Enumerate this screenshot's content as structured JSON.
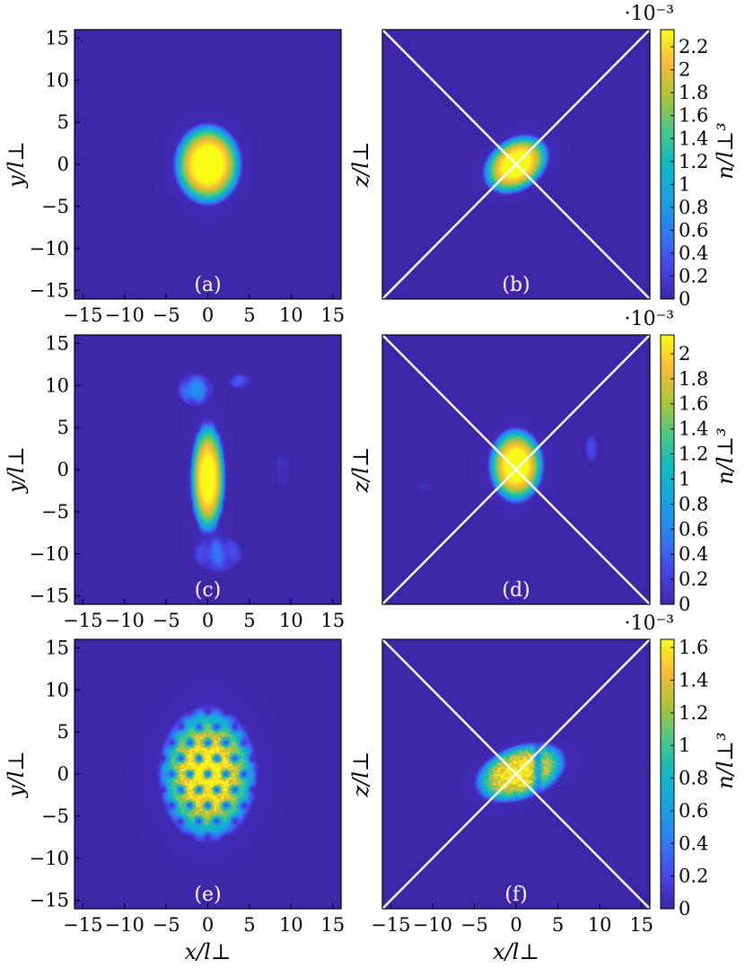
{
  "figure": {
    "xlabel": "x/l⊥",
    "ylabel_left": "y/l⊥",
    "ylabel_right": "z/l⊥",
    "colorbar_label": "n/l⊥³",
    "colorbar_exponent": "·10⁻³"
  },
  "chart_data": [
    {
      "type": "heatmap",
      "panel": "(a)",
      "plane": "x-y",
      "xlim": [
        -16,
        16
      ],
      "ylim": [
        -16,
        16
      ],
      "x_ticks": [
        -15,
        -10,
        -5,
        0,
        5,
        10,
        15
      ],
      "y_ticks": [
        -15,
        -10,
        -5,
        0,
        5,
        10,
        15
      ],
      "show_diagonals": false,
      "peak_density": 2.3,
      "blobs": [
        {
          "cx": 0,
          "cy": 0,
          "sx": 4.2,
          "sy": 5.0,
          "rot": 0,
          "amp": 2.3
        }
      ],
      "texture": "none"
    },
    {
      "type": "heatmap",
      "panel": "(b)",
      "plane": "x-z",
      "xlim": [
        -16,
        16
      ],
      "ylim": [
        -16,
        16
      ],
      "show_diagonals": true,
      "peak_density": 2.3,
      "blobs": [
        {
          "cx": 0,
          "cy": 0,
          "sx": 4.4,
          "sy": 3.2,
          "rot": 35,
          "amp": 2.3
        }
      ],
      "texture": "none",
      "colorbar": {
        "min": 0,
        "max": 2.35,
        "ticks": [
          0,
          0.2,
          0.4,
          0.6,
          0.8,
          1,
          1.2,
          1.4,
          1.6,
          1.8,
          2,
          2.2
        ],
        "exponent": "·10⁻³"
      }
    },
    {
      "type": "heatmap",
      "panel": "(c)",
      "plane": "x-y",
      "xlim": [
        -16,
        16
      ],
      "ylim": [
        -16,
        16
      ],
      "x_ticks": [
        -15,
        -10,
        -5,
        0,
        5,
        10,
        15
      ],
      "y_ticks": [
        -15,
        -10,
        -5,
        0,
        5,
        10,
        15
      ],
      "show_diagonals": false,
      "peak_density": 2.1,
      "blobs": [
        {
          "cx": 0,
          "cy": -1,
          "sx": 2.2,
          "sy": 7.0,
          "rot": 0,
          "amp": 2.0
        },
        {
          "cx": -1.5,
          "cy": 9.5,
          "sx": 2.2,
          "sy": 2.0,
          "rot": 0,
          "amp": 0.6
        },
        {
          "cx": 3.8,
          "cy": 10.5,
          "sx": 1.4,
          "sy": 0.9,
          "rot": 0,
          "amp": 0.35
        },
        {
          "cx": 1.2,
          "cy": -10,
          "sx": 3.0,
          "sy": 2.2,
          "rot": 0,
          "amp": 0.45
        },
        {
          "cx": 9,
          "cy": 0,
          "sx": 0.9,
          "sy": 2.5,
          "rot": 0,
          "amp": 0.08
        }
      ],
      "texture": "edge-vortices"
    },
    {
      "type": "heatmap",
      "panel": "(d)",
      "plane": "x-z",
      "xlim": [
        -16,
        16
      ],
      "ylim": [
        -16,
        16
      ],
      "show_diagonals": true,
      "peak_density": 2.1,
      "blobs": [
        {
          "cx": 0,
          "cy": 0.5,
          "sx": 3.4,
          "sy": 4.6,
          "rot": 0,
          "amp": 2.1
        },
        {
          "cx": 9,
          "cy": 2.5,
          "sx": 0.8,
          "sy": 1.8,
          "rot": 0,
          "amp": 0.25
        },
        {
          "cx": -11,
          "cy": -2,
          "sx": 0.8,
          "sy": 0.6,
          "rot": 0,
          "amp": 0.08
        }
      ],
      "texture": "none",
      "colorbar": {
        "min": 0,
        "max": 2.15,
        "ticks": [
          0,
          0.2,
          0.4,
          0.6,
          0.8,
          1,
          1.2,
          1.4,
          1.6,
          1.8,
          2
        ],
        "exponent": "·10⁻³"
      }
    },
    {
      "type": "heatmap",
      "panel": "(e)",
      "plane": "x-y",
      "xlim": [
        -16,
        16
      ],
      "ylim": [
        -16,
        16
      ],
      "x_ticks": [
        -15,
        -10,
        -5,
        0,
        5,
        10,
        15
      ],
      "y_ticks": [
        -15,
        -10,
        -5,
        0,
        5,
        10,
        15
      ],
      "show_diagonals": false,
      "peak_density": 1.6,
      "blobs": [
        {
          "cx": 0,
          "cy": 0,
          "sx": 6.0,
          "sy": 8.2,
          "rot": 0,
          "amp": 1.55
        }
      ],
      "texture": "vortex-lattice"
    },
    {
      "type": "heatmap",
      "panel": "(f)",
      "plane": "x-z",
      "xlim": [
        -16,
        16
      ],
      "ylim": [
        -16,
        16
      ],
      "x_ticks": [
        -15,
        -10,
        -5,
        0,
        5,
        10,
        15
      ],
      "show_diagonals": true,
      "peak_density": 1.6,
      "blobs": [
        {
          "cx": 0.5,
          "cy": 0.2,
          "sx": 5.8,
          "sy": 3.3,
          "rot": 20,
          "amp": 1.5
        }
      ],
      "texture": "noise-split",
      "colorbar": {
        "min": 0,
        "max": 1.65,
        "ticks": [
          0,
          0.2,
          0.4,
          0.6,
          0.8,
          1,
          1.2,
          1.4,
          1.6
        ],
        "exponent": "·10⁻³"
      }
    }
  ]
}
